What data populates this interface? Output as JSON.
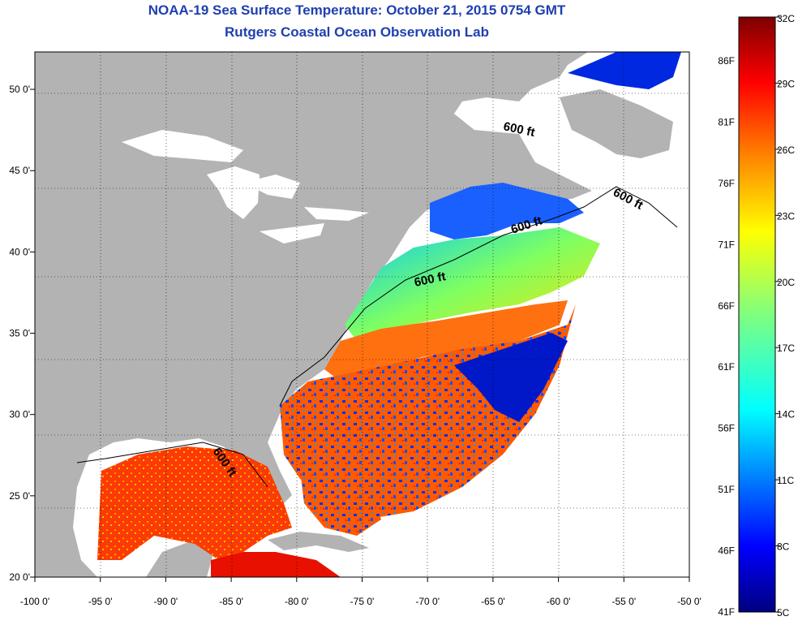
{
  "title": "NOAA-19 Sea Surface Temperature:  October 21, 2015 0754 GMT",
  "subtitle": "Rutgers Coastal Ocean Observation Lab",
  "map": {
    "lon_range": [
      -100,
      -50
    ],
    "lat_range": [
      20,
      52.3
    ],
    "lon_ticks": [
      -100,
      -95,
      -90,
      -85,
      -80,
      -75,
      -70,
      -65,
      -60,
      -55,
      -50
    ],
    "lon_tick_labels": [
      "-100 0'",
      "-95 0'",
      "-90 0'",
      "-85 0'",
      "-80 0'",
      "-75 0'",
      "-70 0'",
      "-65 0'",
      "-60 0'",
      "-55 0'",
      "-50 0'"
    ],
    "lat_ticks": [
      20,
      25,
      30,
      35,
      40,
      45,
      50
    ],
    "lat_tick_labels": [
      "20 0'",
      "25 0'",
      "30 0'",
      "35 0'",
      "40 0'",
      "45 0'",
      "50 0'"
    ],
    "grid": "dotted",
    "land_color": "#b3b3b3",
    "no_data_color": "#ffffff",
    "contour_labels": [
      "600 ft",
      "600 ft",
      "600 ft",
      "600 ft",
      "600 ft"
    ]
  },
  "colorbar": {
    "orientation": "vertical",
    "celsius_labels": [
      "32C",
      "29C",
      "26C",
      "23C",
      "20C",
      "17C",
      "14C",
      "11C",
      "8C",
      "5C"
    ],
    "fahrenheit_labels": [
      "86F",
      "81F",
      "76F",
      "71F",
      "66F",
      "61F",
      "56F",
      "51F",
      "46F",
      "41F"
    ],
    "range_c": [
      5,
      32
    ],
    "colors": [
      "#00007f",
      "#0000ff",
      "#007fff",
      "#00ffff",
      "#7fff7f",
      "#ffff00",
      "#ff7f00",
      "#ff0000",
      "#7f0000"
    ]
  }
}
